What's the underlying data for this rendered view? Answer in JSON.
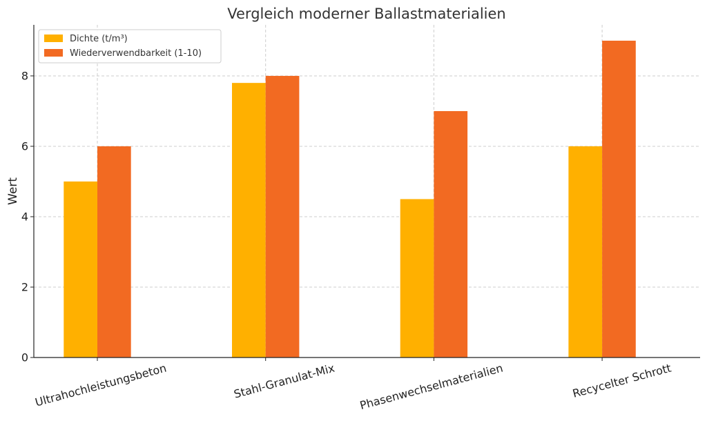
{
  "chart_data": {
    "type": "bar",
    "title": "Vergleich moderner Ballastmaterialien",
    "xlabel": "",
    "ylabel": "Wert",
    "categories": [
      "Ultrahochleistungsbeton",
      "Stahl-Granulat-Mix",
      "Phasenwechselmaterialien",
      "Recycelter Schrott"
    ],
    "series": [
      {
        "name": "Dichte (t/m³)",
        "values": [
          5.0,
          7.8,
          4.5,
          6.0
        ],
        "color": "#FFB000"
      },
      {
        "name": "Wiederverwendbarkeit (1-10)",
        "values": [
          6,
          8,
          7,
          9
        ],
        "color": "#F26A22"
      }
    ],
    "ylim": [
      0,
      9.45
    ],
    "yticks": [
      0,
      2,
      4,
      6,
      8
    ],
    "grid": true,
    "legend": "top-left"
  }
}
